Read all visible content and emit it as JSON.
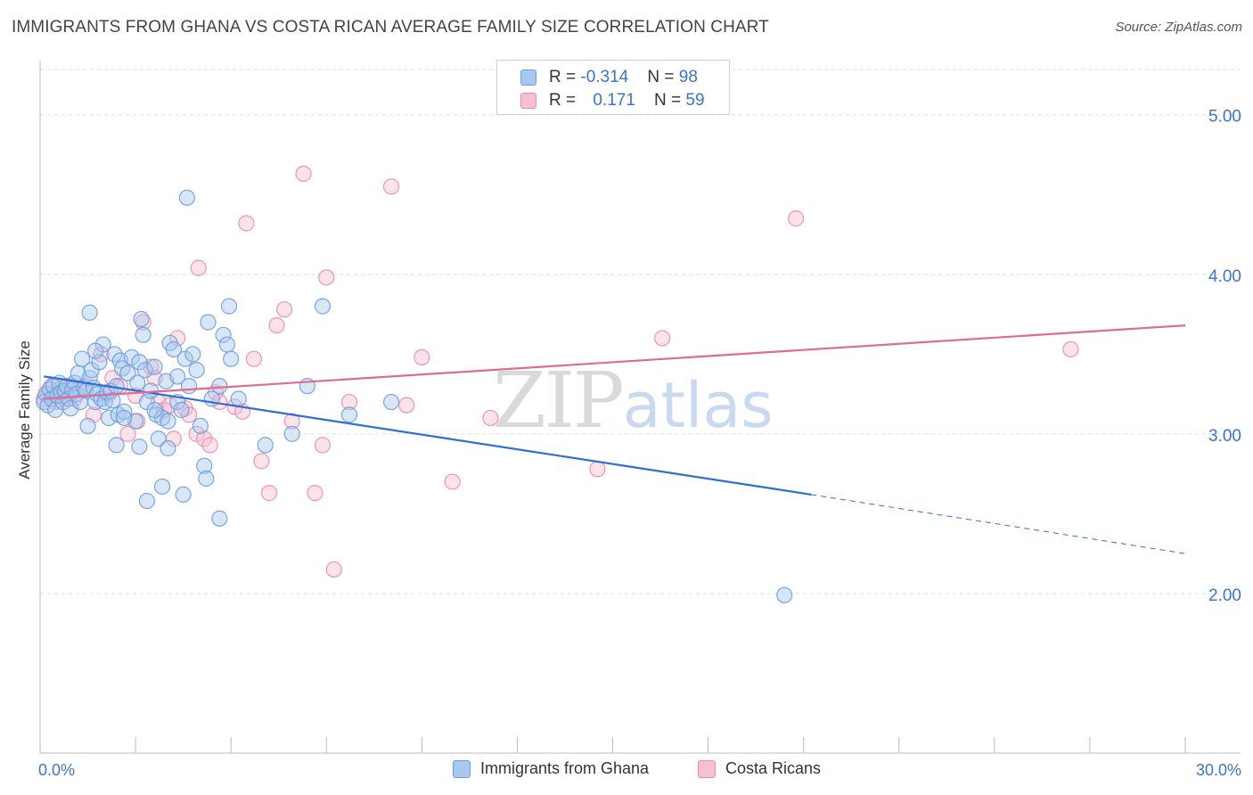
{
  "title": "IMMIGRANTS FROM GHANA VS COSTA RICAN AVERAGE FAMILY SIZE CORRELATION CHART",
  "source": "Source: ZipAtlas.com",
  "watermark": {
    "zip": "ZIP",
    "atlas": "atlas"
  },
  "colors": {
    "blue_fill": "#a9c8f0",
    "blue_stroke": "#6a9fdc",
    "blue_line": "#2f6fd0",
    "pink_fill": "#f7bfd2",
    "pink_stroke": "#e98bab",
    "pink_line": "#e06a95",
    "tick_label": "#3a75c4",
    "grid": "#dddddd"
  },
  "legend": {
    "row1": {
      "r_label": "R = ",
      "r_value": "-0.314",
      "n_label": "N = ",
      "n_value": "98"
    },
    "row2": {
      "r_label": "R = ",
      "r_value": "0.171",
      "n_label": "N = ",
      "n_value": "59"
    }
  },
  "chart_data": {
    "type": "scatter",
    "title": "IMMIGRANTS FROM GHANA VS COSTA RICAN AVERAGE FAMILY SIZE CORRELATION CHART",
    "xlabel": "",
    "ylabel": "Average Family Size",
    "xlim": [
      0,
      30
    ],
    "ylim": [
      1.0,
      5.3
    ],
    "x_tick_labels": [
      "0.0%",
      "30.0%"
    ],
    "y_ticks": [
      2.0,
      3.0,
      4.0,
      5.0
    ],
    "y_tick_labels": [
      "2.00",
      "3.00",
      "4.00",
      "5.00"
    ],
    "grid": true,
    "legend_position": "top-center",
    "series": [
      {
        "name": "Immigrants from Ghana",
        "color": "#a9c8f0",
        "trend": {
          "x0": 0.1,
          "y0": 3.36,
          "x1": 20.2,
          "y1": 2.62,
          "dash_to_x": 30.0,
          "dash_to_y": 2.25
        },
        "points": [
          [
            0.1,
            3.2
          ],
          [
            0.15,
            3.25
          ],
          [
            0.2,
            3.18
          ],
          [
            0.25,
            3.28
          ],
          [
            0.3,
            3.22
          ],
          [
            0.35,
            3.3
          ],
          [
            0.4,
            3.15
          ],
          [
            0.45,
            3.24
          ],
          [
            0.5,
            3.32
          ],
          [
            0.55,
            3.26
          ],
          [
            0.6,
            3.2
          ],
          [
            0.65,
            3.27
          ],
          [
            0.7,
            3.3
          ],
          [
            0.75,
            3.22
          ],
          [
            0.8,
            3.16
          ],
          [
            0.85,
            3.28
          ],
          [
            0.9,
            3.32
          ],
          [
            0.95,
            3.25
          ],
          [
            1.0,
            3.38
          ],
          [
            1.05,
            3.2
          ],
          [
            1.1,
            3.47
          ],
          [
            1.15,
            3.29
          ],
          [
            1.2,
            3.27
          ],
          [
            1.25,
            3.05
          ],
          [
            1.3,
            3.35
          ],
          [
            1.35,
            3.4
          ],
          [
            1.4,
            3.29
          ],
          [
            1.45,
            3.2
          ],
          [
            1.5,
            3.25
          ],
          [
            1.55,
            3.45
          ],
          [
            1.6,
            3.22
          ],
          [
            1.65,
            3.56
          ],
          [
            1.7,
            3.2
          ],
          [
            1.75,
            3.26
          ],
          [
            1.8,
            3.1
          ],
          [
            1.85,
            3.27
          ],
          [
            1.9,
            3.21
          ],
          [
            1.95,
            3.5
          ],
          [
            2.0,
            3.3
          ],
          [
            2.05,
            3.12
          ],
          [
            2.1,
            3.46
          ],
          [
            2.15,
            3.41
          ],
          [
            2.2,
            3.14
          ],
          [
            2.3,
            3.38
          ],
          [
            2.4,
            3.48
          ],
          [
            2.5,
            3.08
          ],
          [
            2.55,
            3.32
          ],
          [
            2.6,
            3.45
          ],
          [
            2.7,
            3.62
          ],
          [
            2.75,
            3.4
          ],
          [
            2.8,
            3.2
          ],
          [
            2.9,
            3.27
          ],
          [
            3.0,
            3.42
          ],
          [
            3.05,
            3.12
          ],
          [
            3.1,
            2.97
          ],
          [
            3.2,
            3.1
          ],
          [
            3.3,
            3.33
          ],
          [
            3.4,
            3.57
          ],
          [
            3.5,
            3.53
          ],
          [
            3.6,
            3.2
          ],
          [
            3.7,
            3.15
          ],
          [
            3.8,
            3.47
          ],
          [
            3.9,
            3.3
          ],
          [
            4.0,
            3.5
          ],
          [
            4.1,
            3.4
          ],
          [
            4.2,
            3.05
          ],
          [
            4.3,
            2.8
          ],
          [
            4.35,
            2.72
          ],
          [
            4.4,
            3.7
          ],
          [
            4.5,
            3.22
          ],
          [
            4.7,
            3.3
          ],
          [
            4.8,
            3.62
          ],
          [
            4.9,
            3.56
          ],
          [
            5.0,
            3.47
          ],
          [
            5.2,
            3.22
          ],
          [
            1.3,
            3.76
          ],
          [
            4.95,
            3.8
          ],
          [
            3.85,
            4.48
          ],
          [
            3.2,
            2.67
          ],
          [
            2.8,
            2.58
          ],
          [
            3.75,
            2.62
          ],
          [
            4.7,
            2.47
          ],
          [
            2.0,
            2.93
          ],
          [
            2.6,
            2.92
          ],
          [
            3.35,
            2.91
          ],
          [
            3.35,
            3.08
          ],
          [
            5.9,
            2.93
          ],
          [
            6.6,
            3.0
          ],
          [
            7.0,
            3.3
          ],
          [
            7.4,
            3.8
          ],
          [
            8.1,
            3.12
          ],
          [
            9.2,
            3.2
          ],
          [
            19.5,
            1.99
          ],
          [
            2.65,
            3.72
          ],
          [
            3.0,
            3.15
          ],
          [
            1.45,
            3.52
          ],
          [
            2.2,
            3.1
          ],
          [
            3.6,
            3.36
          ]
        ]
      },
      {
        "name": "Costa Ricans",
        "color": "#f7bfd2",
        "trend": {
          "x0": 0.1,
          "y0": 3.22,
          "x1": 30.0,
          "y1": 3.68
        },
        "points": [
          [
            0.1,
            3.22
          ],
          [
            0.2,
            3.25
          ],
          [
            0.3,
            3.3
          ],
          [
            0.4,
            3.2
          ],
          [
            0.5,
            3.28
          ],
          [
            0.6,
            3.24
          ],
          [
            0.7,
            3.26
          ],
          [
            0.8,
            3.3
          ],
          [
            0.9,
            3.22
          ],
          [
            1.0,
            3.28
          ],
          [
            1.2,
            3.3
          ],
          [
            1.4,
            3.12
          ],
          [
            1.6,
            3.5
          ],
          [
            1.8,
            3.25
          ],
          [
            1.9,
            3.35
          ],
          [
            2.1,
            3.3
          ],
          [
            2.3,
            3.0
          ],
          [
            2.5,
            3.24
          ],
          [
            2.55,
            3.08
          ],
          [
            2.7,
            3.7
          ],
          [
            2.9,
            3.42
          ],
          [
            3.0,
            3.35
          ],
          [
            3.1,
            3.2
          ],
          [
            3.25,
            3.15
          ],
          [
            3.4,
            3.18
          ],
          [
            3.5,
            2.97
          ],
          [
            3.6,
            3.6
          ],
          [
            3.8,
            3.16
          ],
          [
            3.9,
            3.12
          ],
          [
            4.1,
            3.0
          ],
          [
            4.15,
            4.04
          ],
          [
            4.3,
            2.97
          ],
          [
            4.45,
            2.93
          ],
          [
            4.6,
            3.26
          ],
          [
            4.7,
            3.2
          ],
          [
            5.1,
            3.17
          ],
          [
            5.3,
            3.14
          ],
          [
            5.4,
            4.32
          ],
          [
            5.6,
            3.47
          ],
          [
            5.8,
            2.83
          ],
          [
            6.2,
            3.68
          ],
          [
            6.4,
            3.78
          ],
          [
            6.6,
            3.08
          ],
          [
            6.9,
            4.63
          ],
          [
            7.2,
            2.63
          ],
          [
            7.4,
            2.93
          ],
          [
            7.5,
            3.98
          ],
          [
            7.7,
            2.15
          ],
          [
            8.1,
            3.2
          ],
          [
            9.2,
            4.55
          ],
          [
            9.6,
            3.18
          ],
          [
            10.0,
            3.48
          ],
          [
            10.8,
            2.7
          ],
          [
            11.8,
            3.1
          ],
          [
            14.6,
            2.78
          ],
          [
            16.3,
            3.6
          ],
          [
            19.8,
            4.35
          ],
          [
            27.0,
            3.53
          ],
          [
            6.0,
            2.63
          ]
        ]
      }
    ]
  },
  "bottom_legend": {
    "ghana": "Immigrants from Ghana",
    "costa": "Costa Ricans"
  }
}
